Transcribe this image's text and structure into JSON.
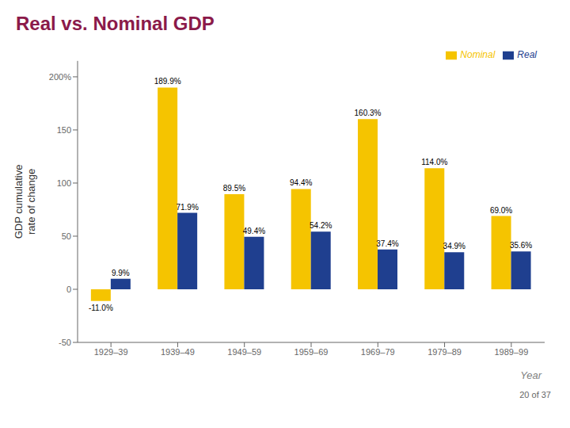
{
  "chart_data": {
    "type": "bar",
    "title": "Real vs. Nominal GDP",
    "xlabel": "Year",
    "ylabel": "GDP cumulative\nrate of change",
    "categories": [
      "1929–39",
      "1939–49",
      "1949–59",
      "1959–69",
      "1969–79",
      "1979–89",
      "1989–99"
    ],
    "series": [
      {
        "name": "Nominal",
        "color": "#F5C400",
        "values": [
          -11.0,
          189.9,
          89.5,
          94.4,
          160.3,
          114.0,
          69.0
        ],
        "value_labels": [
          "-11.0%",
          "189.9%",
          "89.5%",
          "94.4%",
          "160.3%",
          "114.0%",
          "69.0%"
        ]
      },
      {
        "name": "Real",
        "color": "#1F3F8F",
        "values": [
          9.9,
          71.9,
          49.4,
          54.2,
          37.4,
          34.9,
          35.6
        ],
        "value_labels": [
          "9.9%",
          "71.9%",
          "49.4%",
          "54.2%",
          "37.4%",
          "34.9%",
          "35.6%"
        ]
      }
    ],
    "ylim": [
      -50,
      215
    ],
    "yticks": [
      -50,
      0,
      50,
      100,
      150,
      {
        "value": 200,
        "label": "200%"
      }
    ],
    "grid": false,
    "legend": "upper right",
    "data_labels": true,
    "annotations": [
      "20 of 37"
    ]
  }
}
